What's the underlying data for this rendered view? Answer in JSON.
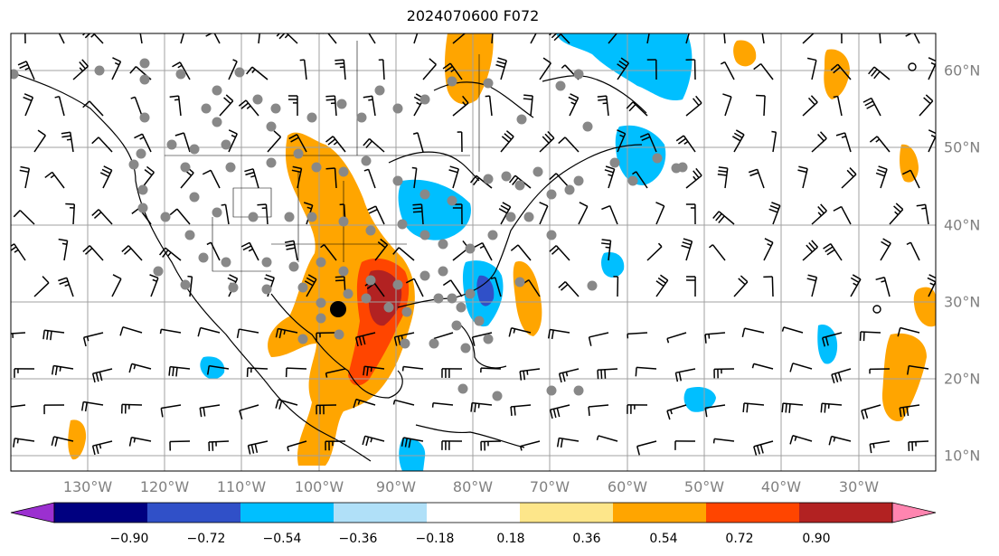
{
  "map": {
    "title": "2024070600 F072",
    "lon_ticks": [
      "130°W",
      "120°W",
      "110°W",
      "100°W",
      "90°W",
      "80°W",
      "70°W",
      "60°W",
      "50°W",
      "40°W",
      "30°W"
    ],
    "lat_ticks": [
      "60°N",
      "50°N",
      "40°N",
      "30°N",
      "20°N",
      "10°N"
    ],
    "extent": {
      "lon_min": -137,
      "lon_max": -17,
      "lat_min": 8,
      "lat_max": 65
    },
    "overlays": [
      "coastlines",
      "state borders",
      "country borders",
      "gridlines",
      "wind barbs",
      "grey station dots",
      "shaded anomaly field"
    ]
  },
  "colorbar": {
    "labels": [
      "−0.90",
      "−0.72",
      "−0.54",
      "−0.36",
      "−0.18",
      "0.18",
      "0.36",
      "0.54",
      "0.72",
      "0.90"
    ],
    "colors": [
      "#9b30d0",
      "#000080",
      "#3050c8",
      "#00bfff",
      "#b0e0f8",
      "#ffffff",
      "#fde68a",
      "#ffa500",
      "#ff4500",
      "#b22222",
      "#ff85b0"
    ],
    "extend": "both"
  },
  "colors": {
    "tick_label": "#808080",
    "gridline": "#a0a0a0",
    "station_dot": "#888888",
    "barb": "#000000"
  }
}
